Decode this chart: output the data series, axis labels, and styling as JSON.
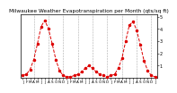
{
  "title": "Milwaukee Weather Evapotranspiration per Month (qts/sq ft)",
  "values": [
    0.2,
    0.3,
    0.7,
    1.5,
    2.8,
    4.2,
    4.7,
    4.0,
    2.8,
    1.5,
    0.6,
    0.2,
    0.1,
    0.1,
    0.2,
    0.3,
    0.5,
    0.8,
    1.0,
    0.8,
    0.5,
    0.3,
    0.2,
    0.1,
    0.2,
    0.3,
    0.8,
    1.6,
    3.0,
    4.3,
    4.6,
    3.9,
    2.7,
    1.4,
    0.6,
    0.2,
    0.1
  ],
  "line_color": "#dd0000",
  "marker": "o",
  "linestyle": "--",
  "linewidth": 0.7,
  "markersize": 1.5,
  "ylim": [
    0,
    5.2
  ],
  "yticks": [
    1,
    2,
    3,
    4,
    5
  ],
  "ytick_labels": [
    "1",
    "2",
    "3",
    "4",
    "5"
  ],
  "grid_color": "#888888",
  "grid_linestyle": "--",
  "background_color": "#ffffff",
  "tick_fontsize": 3.5,
  "title_fontsize": 4.2,
  "vgrid_x": [
    3,
    7,
    11,
    15,
    19,
    23,
    27,
    31,
    35
  ],
  "xlabel_fontsize": 3.0
}
